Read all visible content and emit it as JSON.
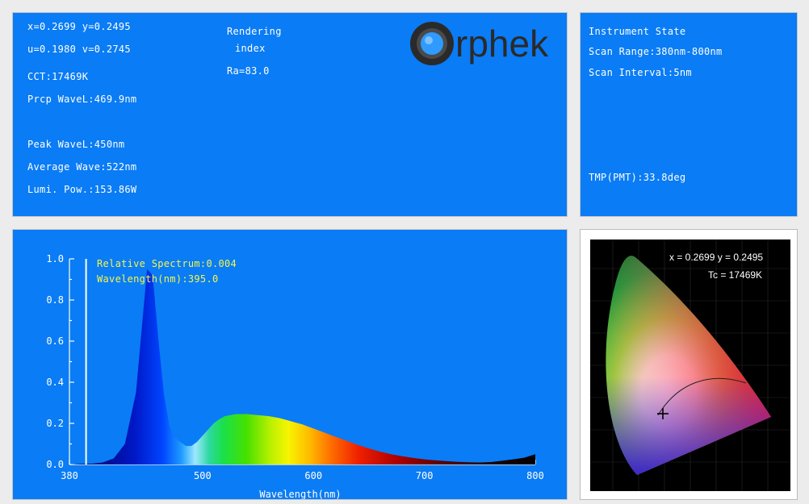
{
  "color_params": {
    "xy": "x=0.2699 y=0.2495",
    "uv": "u=0.1980 v=0.2745",
    "cct": "CCT:17469K",
    "prcp_wave": "Prcp WaveL:469.9nm",
    "peak_wave": "Peak WaveL:450nm",
    "avg_wave": "Average Wave:522nm",
    "lumi_pow": "Lumi. Pow.:153.86W",
    "rendering_label_1": "Rendering",
    "rendering_label_2": "index",
    "ra": "Ra=83.0"
  },
  "logo": {
    "text": "rphek",
    "ring_color": "#2f9bff"
  },
  "instrument_state": {
    "title": "Instrument State",
    "scan_range": "Scan Range:380nm-800nm",
    "scan_interval": "Scan Interval:5nm",
    "tmp": "TMP(PMT):33.8deg"
  },
  "cursor_readout": {
    "relative_spectrum": "Relative Spectrum:0.004",
    "wavelength": "Wavelength(nm):395.0"
  },
  "cie": {
    "xy_label": "x = 0.2699 y = 0.2495",
    "tc_label": "Tc = 17469K"
  },
  "chart_data": {
    "type": "area",
    "xlabel": "Wavelength(nm)",
    "ylabel": "",
    "xlim": [
      380,
      800
    ],
    "ylim": [
      0,
      1.0
    ],
    "x_ticks": [
      380,
      500,
      600,
      700,
      800
    ],
    "y_ticks": [
      "0.0",
      "0.2",
      "0.4",
      "0.6",
      "0.8",
      "1.0"
    ],
    "cursor_wavelength": 395.0,
    "x": [
      380,
      390,
      400,
      410,
      420,
      430,
      440,
      445,
      450,
      455,
      460,
      465,
      470,
      475,
      480,
      485,
      490,
      495,
      500,
      505,
      510,
      515,
      520,
      530,
      540,
      550,
      560,
      570,
      580,
      590,
      600,
      610,
      620,
      630,
      640,
      650,
      660,
      670,
      680,
      690,
      700,
      710,
      720,
      730,
      740,
      750,
      760,
      770,
      780,
      790,
      800
    ],
    "values": [
      0.0,
      0.003,
      0.004,
      0.01,
      0.03,
      0.1,
      0.35,
      0.65,
      0.95,
      0.92,
      0.62,
      0.35,
      0.19,
      0.13,
      0.11,
      0.09,
      0.09,
      0.11,
      0.14,
      0.17,
      0.2,
      0.22,
      0.235,
      0.245,
      0.245,
      0.24,
      0.235,
      0.225,
      0.21,
      0.195,
      0.175,
      0.155,
      0.135,
      0.115,
      0.095,
      0.078,
      0.063,
      0.05,
      0.04,
      0.032,
      0.025,
      0.02,
      0.016,
      0.013,
      0.011,
      0.01,
      0.012,
      0.018,
      0.025,
      0.033,
      0.05
    ]
  }
}
